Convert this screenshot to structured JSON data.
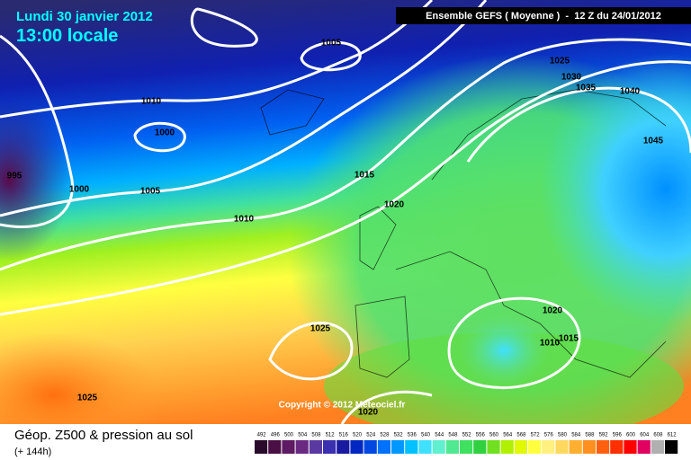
{
  "header": {
    "date": "Lundi 30 janvier 2012",
    "time": "13:00 locale",
    "model": "Ensemble GEFS ( Moyenne )  -  12 Z du 24/01/2012"
  },
  "copyright": "Copyright © 2012 Meteociel.fr",
  "footer": {
    "title": "Géop. Z500 & pression au sol",
    "lead": "(+ 144h)"
  },
  "isobar_labels": [
    1005,
    1025,
    1030,
    1035,
    1040,
    1010,
    1000,
    1045,
    995,
    1015,
    1000,
    1005,
    1020,
    1010,
    1020,
    1025,
    1015,
    1010,
    1020,
    1025
  ],
  "legend": {
    "values": [
      492,
      496,
      500,
      504,
      508,
      512,
      516,
      520,
      524,
      528,
      532,
      536,
      540,
      544,
      548,
      552,
      556,
      560,
      564,
      568,
      572,
      576,
      580,
      584,
      588,
      592,
      596,
      600,
      604,
      608,
      612
    ],
    "colors": [
      "#2a0a2a",
      "#4a0f45",
      "#5e1a62",
      "#6a2a82",
      "#5a3aa0",
      "#3a30b0",
      "#1a1aa0",
      "#0028c0",
      "#0048e0",
      "#0070ff",
      "#0098ff",
      "#00c0ff",
      "#40e0ff",
      "#60f0d0",
      "#50e890",
      "#40e060",
      "#30d040",
      "#70e020",
      "#b0f000",
      "#e0f800",
      "#ffff40",
      "#fff080",
      "#ffd860",
      "#ffb030",
      "#ff9020",
      "#ff6010",
      "#ff3000",
      "#ff0000",
      "#e00060",
      "#b0b0b0",
      "#000000"
    ]
  }
}
